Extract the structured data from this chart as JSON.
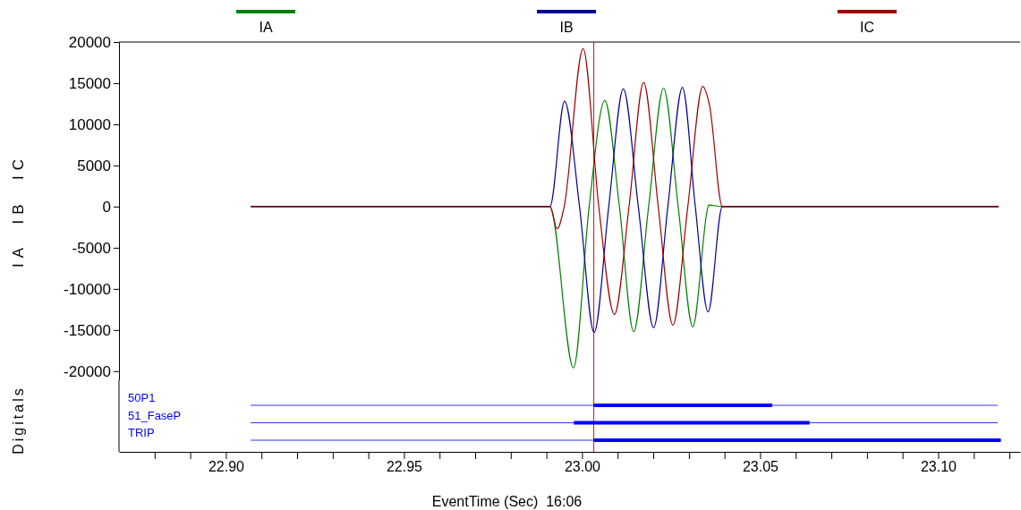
{
  "chart_data": [
    {
      "type": "line",
      "ylabel": "IA  IB  IC",
      "legend": "top",
      "tick_labels": "y",
      "xlim": [
        22.87,
        23.123
      ],
      "ylim": [
        -21000,
        20000
      ],
      "yticks": [
        -20000,
        -15000,
        -10000,
        -5000,
        0,
        5000,
        10000,
        15000,
        20000
      ],
      "series": [
        {
          "name": "IA",
          "color": "#008000",
          "x": [
            22.907,
            22.991,
            22.9976,
            23.002,
            23.0064,
            23.0105,
            23.0145,
            23.0187,
            23.0229,
            23.027,
            23.0311,
            23.0354,
            23.0356,
            23.0394,
            23.117
          ],
          "values": [
            0,
            0,
            -19600,
            0,
            12900,
            0,
            -15200,
            0,
            14400,
            0,
            -14600,
            0,
            200,
            0,
            0
          ]
        },
        {
          "name": "IB",
          "color": "#000099",
          "x": [
            22.907,
            22.991,
            22.9951,
            22.9993,
            23.0034,
            23.0075,
            23.0116,
            23.0158,
            23.0201,
            23.0241,
            23.0282,
            23.0318,
            23.0354,
            23.0394,
            23.117
          ],
          "values": [
            0,
            0,
            12800,
            0,
            -15300,
            0,
            14300,
            0,
            -14700,
            0,
            14500,
            0,
            -12800,
            0,
            0
          ]
        },
        {
          "name": "IC",
          "color": "#a00000",
          "x": [
            22.907,
            22.991,
            22.993,
            22.995,
            23.0003,
            23.0047,
            23.0091,
            23.0132,
            23.0173,
            23.0214,
            23.0255,
            23.0297,
            23.0339,
            23.0358,
            23.0394,
            23.117
          ],
          "values": [
            0,
            0,
            -2700,
            0,
            19200,
            0,
            -13100,
            0,
            15100,
            0,
            -14400,
            0,
            14600,
            12300,
            0,
            0
          ]
        }
      ],
      "ref_lines": [
        {
          "axis": "x",
          "value": 23.0033,
          "color": "#ff0000"
        }
      ]
    },
    {
      "type": "bar",
      "orientation": "horizontal",
      "xlabel": "EventTime (Sec)  16:06",
      "ylabel": "Digitals",
      "grid": "y",
      "categories": [
        "50P1",
        "51_FaseP",
        "TRIP"
      ],
      "base": [
        23.0033,
        22.9977,
        23.0033
      ],
      "values": [
        0.0501,
        0.0662,
        0.1143
      ],
      "color": "#0000ff",
      "xlim": [
        22.87,
        23.123
      ],
      "xticks": [
        {
          "value": 22.88,
          "label": null
        },
        {
          "value": 22.89,
          "label": null
        },
        {
          "value": 22.9,
          "label": "22.90"
        },
        {
          "value": 22.91,
          "label": null
        },
        {
          "value": 22.92,
          "label": null
        },
        {
          "value": 22.93,
          "label": null
        },
        {
          "value": 22.94,
          "label": null
        },
        {
          "value": 22.95,
          "label": "22.95"
        },
        {
          "value": 22.96,
          "label": null
        },
        {
          "value": 22.97,
          "label": null
        },
        {
          "value": 22.98,
          "label": null
        },
        {
          "value": 22.99,
          "label": null
        },
        {
          "value": 23.0,
          "label": "23.00"
        },
        {
          "value": 23.01,
          "label": null
        },
        {
          "value": 23.02,
          "label": null
        },
        {
          "value": 23.03,
          "label": null
        },
        {
          "value": 23.04,
          "label": null
        },
        {
          "value": 23.05,
          "label": "23.05"
        },
        {
          "value": 23.06,
          "label": null
        },
        {
          "value": 23.07,
          "label": null
        },
        {
          "value": 23.08,
          "label": null
        },
        {
          "value": 23.09,
          "label": null
        },
        {
          "value": 23.1,
          "label": "23.10"
        },
        {
          "value": 23.11,
          "label": null
        },
        {
          "value": 23.12,
          "label": null
        }
      ],
      "ref_lines": [
        {
          "axis": "x",
          "value": 23.0033,
          "color": "#ff0000"
        }
      ]
    }
  ]
}
